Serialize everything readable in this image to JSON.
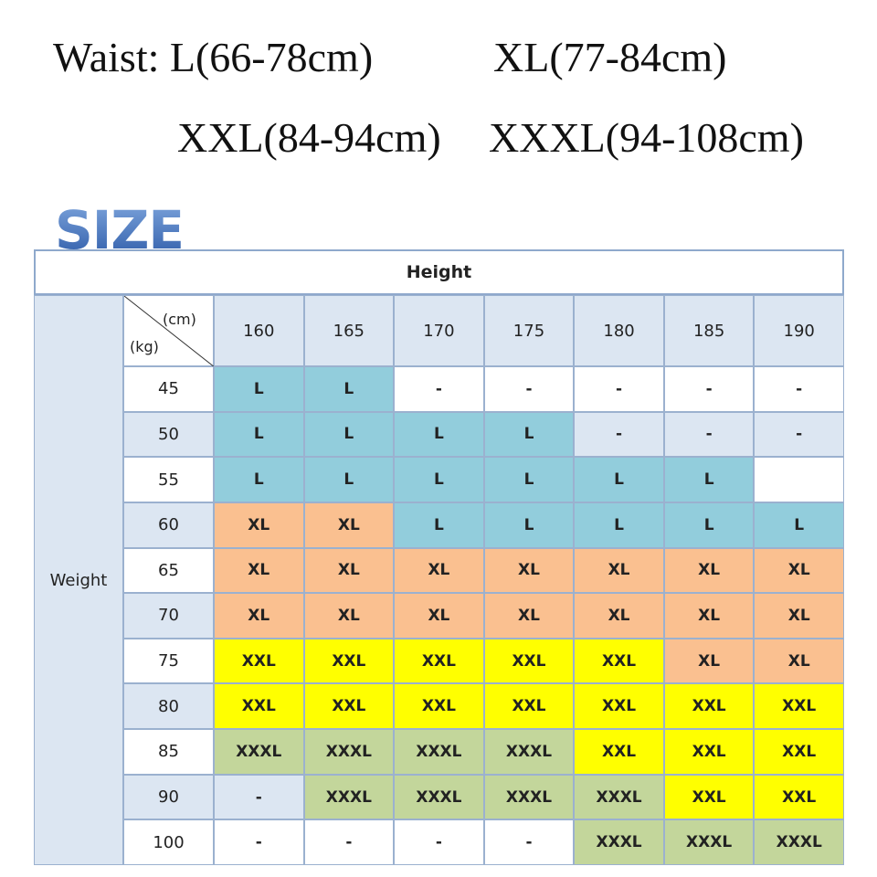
{
  "header": {
    "waist_lines": [
      [
        "Waist: L(66-78cm)",
        "XL(77-84cm)"
      ],
      [
        "XXL(84-94cm)",
        "XXXL(94-108cm)"
      ]
    ]
  },
  "logo": "SIZE",
  "table": {
    "height_label": "Height",
    "weight_label": "Weight",
    "corner": {
      "top": "(cm)",
      "bottom": "(kg)"
    },
    "size_colors": {
      "L": "#92cddc",
      "XL": "#fac090",
      "XXL": "#ffff00",
      "XXXL": "#c3d69b"
    },
    "columns": [
      "160",
      "165",
      "170",
      "175",
      "180",
      "185",
      "190"
    ],
    "rows": [
      {
        "weight": "45",
        "cells": [
          "L",
          "L",
          "-",
          "-",
          "-",
          "-",
          "-"
        ]
      },
      {
        "weight": "50",
        "cells": [
          "L",
          "L",
          "L",
          "L",
          "-",
          "-",
          "-"
        ]
      },
      {
        "weight": "55",
        "cells": [
          "L",
          "L",
          "L",
          "L",
          "L",
          "L",
          null
        ]
      },
      {
        "weight": "60",
        "cells": [
          "XL",
          "XL",
          "L",
          "L",
          "L",
          "L",
          "L"
        ]
      },
      {
        "weight": "65",
        "cells": [
          "XL",
          "XL",
          "XL",
          "XL",
          "XL",
          "XL",
          "XL"
        ]
      },
      {
        "weight": "70",
        "cells": [
          "XL",
          "XL",
          "XL",
          "XL",
          "XL",
          "XL",
          "XL"
        ]
      },
      {
        "weight": "75",
        "cells": [
          "XXL",
          "XXL",
          "XXL",
          "XXL",
          "XXL",
          "XL",
          "XL"
        ]
      },
      {
        "weight": "80",
        "cells": [
          "XXL",
          "XXL",
          "XXL",
          "XXL",
          "XXL",
          "XXL",
          "XXL"
        ]
      },
      {
        "weight": "85",
        "cells": [
          "XXXL",
          "XXXL",
          "XXXL",
          "XXXL",
          "XXL",
          "XXL",
          "XXL"
        ]
      },
      {
        "weight": "90",
        "cells": [
          "-",
          "XXXL",
          "XXXL",
          "XXXL",
          "XXXL",
          "XXL",
          "XXL"
        ]
      },
      {
        "weight": "100",
        "cells": [
          "-",
          "-",
          "-",
          "-",
          "XXXL",
          "XXXL",
          "XXXL"
        ]
      }
    ]
  }
}
